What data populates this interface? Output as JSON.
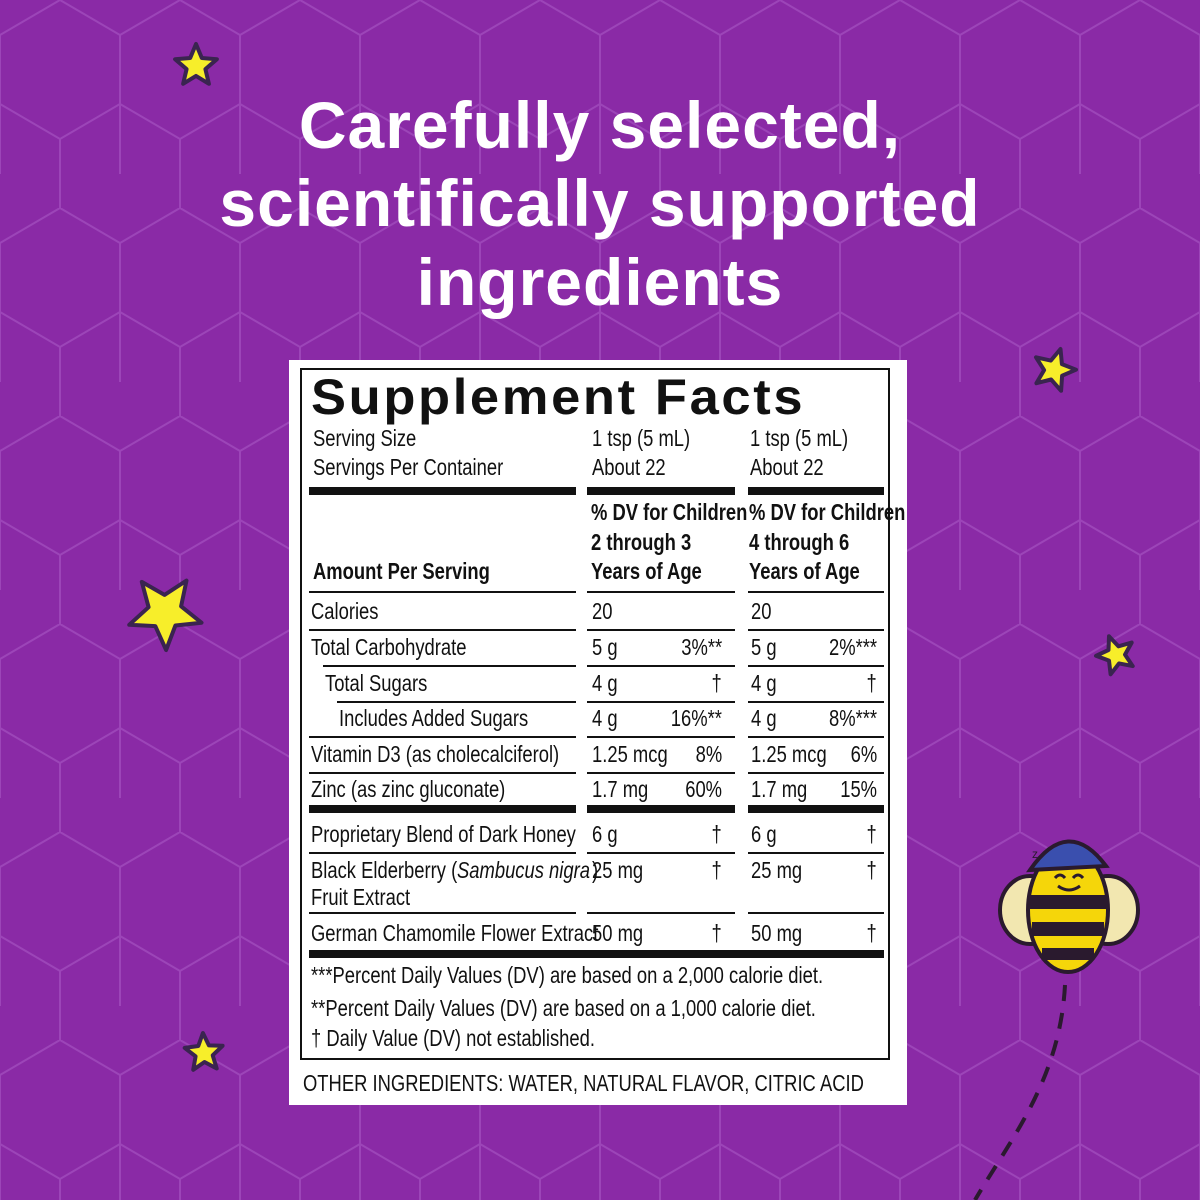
{
  "headline": {
    "lines": [
      "Carefully selected,",
      "scientifically supported",
      "ingredients"
    ]
  },
  "facts": {
    "title": "Supplement Facts",
    "serving": [
      [
        "Serving Size",
        "1 tsp (5 mL)",
        "1 tsp (5 mL)"
      ],
      [
        "Servings Per Container",
        "About 22",
        "About 22"
      ]
    ],
    "header": {
      "label": "Amount Per Serving",
      "columns": [
        [
          "% DV for Children",
          "2 through 3",
          "Years of Age"
        ],
        [
          "% DV for Children",
          "4 through 6",
          "Years of Age"
        ]
      ]
    },
    "rows": [
      {
        "name": "Calories",
        "cols": [
          [
            "20"
          ],
          [
            "20"
          ]
        ]
      },
      {
        "name": "Total Carbohydrate",
        "cols": [
          [
            "5 g",
            "3%**"
          ],
          [
            "5 g",
            "2%***"
          ]
        ]
      },
      {
        "name": "Total Sugars",
        "cols": [
          [
            "4 g",
            "†"
          ],
          [
            "4 g",
            "†"
          ]
        ]
      },
      {
        "name": "Includes Added Sugars",
        "cols": [
          [
            "4 g",
            "16%**"
          ],
          [
            "4 g",
            "8%***"
          ]
        ]
      },
      {
        "name": "Vitamin D3 (as cholecalciferol)",
        "cols": [
          [
            "1.25 mcg",
            "8%"
          ],
          [
            "1.25 mcg",
            "6%"
          ]
        ]
      },
      {
        "name": "Zinc (as zinc gluconate)",
        "cols": [
          [
            "1.7 mg",
            "60%"
          ],
          [
            "1.7 mg",
            "15%"
          ]
        ]
      }
    ],
    "blend": [
      {
        "name": "Proprietary Blend of Dark Honey",
        "cols": [
          [
            "6 g",
            "†"
          ],
          [
            "6 g",
            "†"
          ]
        ]
      },
      {
        "name": [
          "Black Elderberry (",
          "Sambucus nigra",
          ")"
        ],
        "name_line2": "Fruit Extract",
        "cols": [
          [
            "25 mg",
            "†"
          ],
          [
            "25 mg",
            "†"
          ]
        ]
      },
      {
        "name": "German Chamomile Flower Extract",
        "cols": [
          [
            "50 mg",
            "†"
          ],
          [
            "50 mg",
            "†"
          ]
        ]
      }
    ],
    "footnotes": [
      "***Percent Daily Values (DV) are based on a 2,000 calorie diet.",
      "**Percent Daily Values (DV) are based on a 1,000 calorie diet.",
      "† Daily Value (DV) not established."
    ],
    "other_ingredients": "OTHER INGREDIENTS: WATER, NATURAL FLAVOR, CITRIC ACID"
  }
}
